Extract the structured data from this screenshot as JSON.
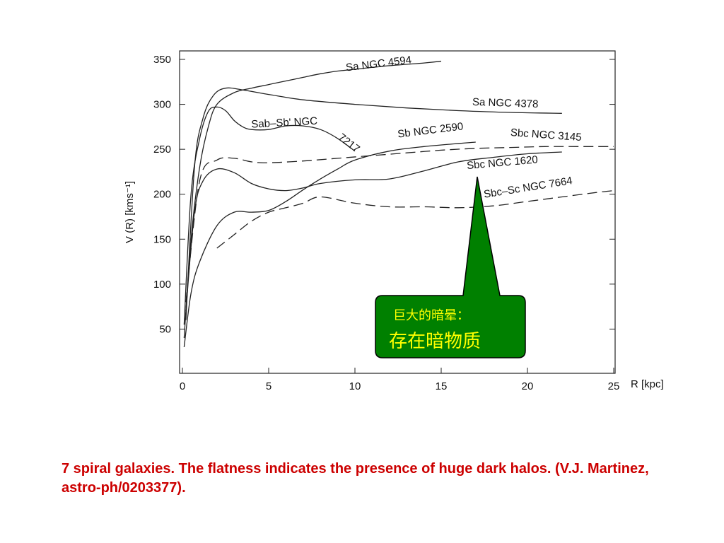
{
  "chart_data": {
    "type": "line",
    "xlabel": "R [kpc]",
    "ylabel": "V (R) [kms⁻¹]",
    "xlim": [
      0,
      25
    ],
    "ylim": [
      0,
      350
    ],
    "x_ticks": [
      "0",
      "5",
      "10",
      "15",
      "20",
      "25"
    ],
    "y_ticks": [
      "350",
      "300",
      "250",
      "200",
      "150",
      "100",
      "50"
    ],
    "grid": false,
    "series": [
      {
        "name": "Sa NGC 4594",
        "style": "solid",
        "x": [
          0.1,
          0.5,
          1,
          1.5,
          2,
          3,
          4,
          5,
          6,
          7,
          8,
          9,
          10,
          12,
          14,
          15
        ],
        "y": [
          40,
          150,
          230,
          275,
          300,
          313,
          318,
          322,
          326,
          330,
          334,
          337,
          339,
          343,
          346,
          348
        ]
      },
      {
        "name": "Sa NGC 4378",
        "style": "solid",
        "x": [
          0.2,
          0.7,
          1.2,
          1.8,
          2.5,
          3.5,
          5,
          7,
          10,
          13,
          16,
          19,
          22
        ],
        "y": [
          60,
          230,
          285,
          310,
          318,
          316,
          311,
          305,
          300,
          296,
          293,
          291,
          290
        ]
      },
      {
        "name": "Sab-Sb NGC 7217",
        "style": "solid",
        "x": [
          0.1,
          0.5,
          1,
          1.5,
          2,
          2.5,
          3,
          3.5,
          4,
          5,
          6,
          7,
          8,
          9,
          10
        ],
        "y": [
          55,
          200,
          262,
          292,
          297,
          293,
          282,
          275,
          272,
          272,
          276,
          276,
          272,
          262,
          248
        ]
      },
      {
        "name": "Sb NGC 2590",
        "style": "solid",
        "x": [
          0.1,
          0.5,
          1,
          2,
          3,
          4,
          5,
          6,
          7,
          8,
          9,
          10,
          12,
          14,
          17
        ],
        "y": [
          30,
          90,
          125,
          165,
          180,
          180,
          182,
          192,
          205,
          217,
          228,
          238,
          248,
          253,
          258
        ]
      },
      {
        "name": "Sbc NGC 3145",
        "style": "dashed",
        "x": [
          0.2,
          1,
          2,
          3,
          4,
          5,
          7,
          9,
          11,
          13,
          15,
          17,
          19,
          21,
          23,
          25
        ],
        "y": [
          80,
          215,
          238,
          240,
          236,
          235,
          237,
          240,
          243,
          246,
          249,
          251,
          252,
          253,
          253,
          253
        ]
      },
      {
        "name": "Sbc NGC 1620",
        "style": "solid",
        "x": [
          0.2,
          0.7,
          1.2,
          2,
          3,
          4,
          5,
          6,
          7,
          8,
          10,
          12,
          14,
          16,
          18,
          20,
          22
        ],
        "y": [
          70,
          180,
          215,
          228,
          224,
          212,
          206,
          204,
          207,
          212,
          216,
          217,
          226,
          236,
          241,
          245,
          247
        ]
      },
      {
        "name": "Sbc-Sc NGC 7664",
        "style": "dashed",
        "x": [
          2,
          3,
          4,
          5,
          6,
          7,
          8,
          10,
          12,
          14,
          16,
          18,
          20,
          22,
          24,
          25
        ],
        "y": [
          140,
          155,
          170,
          180,
          185,
          190,
          197,
          190,
          186,
          186,
          185,
          187,
          192,
          197,
          202,
          204
        ]
      }
    ],
    "labels": [
      {
        "text": "Sa NGC 4594",
        "x": 9.5,
        "y": 337,
        "rot": -7
      },
      {
        "text": "Sa NGC 4378",
        "x": 16.8,
        "y": 299,
        "rot": 2
      },
      {
        "text": "Sab–Sb' NGC",
        "x": 4.0,
        "y": 274,
        "rot": -3
      },
      {
        "text": "7217",
        "x": 9.0,
        "y": 262,
        "rot": 38
      },
      {
        "text": "Sb NGC 2590",
        "x": 12.5,
        "y": 263,
        "rot": -7
      },
      {
        "text": "Sbc NGC 3145",
        "x": 19.0,
        "y": 265,
        "rot": 4
      },
      {
        "text": "Sbc NGC 1620",
        "x": 16.5,
        "y": 228,
        "rot": -5
      },
      {
        "text": "Sbc–Sc NGC 7664",
        "x": 17.5,
        "y": 196,
        "rot": -9
      }
    ]
  },
  "callout": {
    "line1": "巨大的暗晕：",
    "line2": "存在暗物质",
    "fill": "#008000",
    "text_color": "#ffff00"
  },
  "caption": "7 spiral galaxies. The flatness indicates the presence of huge dark halos. (V.J. Martinez, astro-ph/0203377)."
}
